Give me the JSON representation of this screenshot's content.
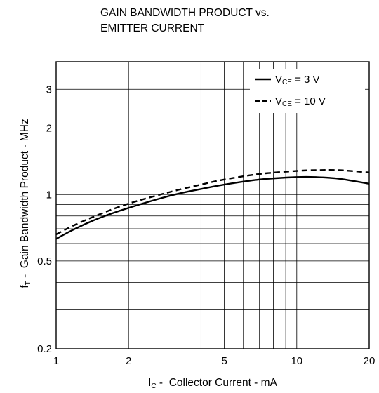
{
  "chart_data": {
    "type": "line",
    "title_lines": [
      "GAIN BANDWIDTH PRODUCT vs.",
      "EMITTER CURRENT"
    ],
    "xlabel": {
      "symbol": "I",
      "subscript": "C",
      "text": "Collector Current  - mA"
    },
    "ylabel": {
      "symbol": "f",
      "subscript": "T",
      "text": "Gain Bandwidth Product  - MHz"
    },
    "x_scale": "log",
    "y_scale": "log",
    "xlim": [
      1,
      20
    ],
    "ylim": [
      0.2,
      4
    ],
    "x_ticks": [
      1,
      2,
      5,
      10,
      20
    ],
    "x_tick_labels": [
      "1",
      "2",
      "5",
      "10",
      "20"
    ],
    "y_ticks": [
      0.2,
      0.5,
      1,
      2,
      3
    ],
    "y_tick_labels": [
      "0.2",
      "0.5",
      "1",
      "2",
      "3"
    ],
    "grid": true,
    "legend_position": "top-right",
    "series": [
      {
        "name": "VCE = 3 V",
        "label": {
          "prefix": "V",
          "subscript": "CE",
          "suffix": " = 3 V"
        },
        "style": "solid",
        "color": "#000000",
        "x": [
          1,
          1.2,
          1.5,
          2,
          3,
          4,
          5,
          7,
          10,
          12,
          15,
          20
        ],
        "y": [
          0.63,
          0.7,
          0.78,
          0.87,
          0.99,
          1.06,
          1.11,
          1.17,
          1.2,
          1.2,
          1.18,
          1.12
        ]
      },
      {
        "name": "VCE = 10 V",
        "label": {
          "prefix": "V",
          "subscript": "CE",
          "suffix": " = 10 V"
        },
        "style": "dashed",
        "color": "#000000",
        "x": [
          1,
          1.2,
          1.5,
          2,
          3,
          4,
          5,
          7,
          10,
          12,
          15,
          20
        ],
        "y": [
          0.66,
          0.73,
          0.81,
          0.91,
          1.03,
          1.11,
          1.17,
          1.24,
          1.28,
          1.29,
          1.29,
          1.26
        ]
      }
    ]
  }
}
